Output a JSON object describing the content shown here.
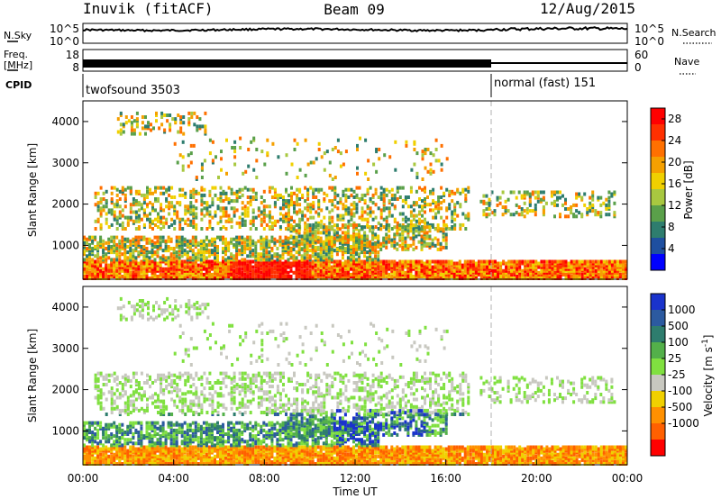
{
  "header": {
    "title_left": "Inuvik (fitACF)",
    "title_center": "Beam 09",
    "title_right": "12/Aug/2015"
  },
  "nsky": {
    "label": "N.Sky",
    "tick_top": "10^5",
    "tick_bottom": "10^0",
    "right_label": "N.Search",
    "right_tick_top": "10^5",
    "right_tick_bottom": "10^0"
  },
  "freq": {
    "label_line1": "Freq.",
    "label_line2": "[MHz]",
    "tick_top": "18",
    "tick_bottom": "8",
    "right_label": "Nave",
    "right_tick_top": "60",
    "right_tick_bottom": "0"
  },
  "cpid": {
    "label": "CPID",
    "mode1": "twofsound 3503",
    "mode2": "normal (fast) 151",
    "switch_time_hours": 18.0
  },
  "colors": {
    "power": [
      "#0000ff",
      "#1e4fa0",
      "#2e7d6e",
      "#5aa04a",
      "#a8c840",
      "#f0d000",
      "#f5a000",
      "#ff7000",
      "#ff3000",
      "#ff0000"
    ],
    "velocity": [
      "#1a33cc",
      "#2c5aa0",
      "#2e7d6e",
      "#53b04a",
      "#80e040",
      "#c8c8c0",
      "#f0d000",
      "#ff9000",
      "#ff6000",
      "#ff0000"
    ]
  },
  "chart_data": [
    {
      "type": "heatmap",
      "ylabel": "Slant Range [km]",
      "yticks": [
        1000,
        2000,
        3000,
        4000
      ],
      "ylim": [
        180,
        4500
      ],
      "xlim_hours": [
        0,
        24
      ],
      "colorbar": {
        "label": "Power [dB]",
        "ticks": [
          "4",
          "8",
          "12",
          "16",
          "20",
          "24",
          "28"
        ],
        "range": [
          0,
          30
        ]
      }
    },
    {
      "type": "heatmap",
      "ylabel": "Slant Range [km]",
      "yticks": [
        1000,
        2000,
        3000,
        4000
      ],
      "ylim": [
        180,
        4500
      ],
      "xlim_hours": [
        0,
        24
      ],
      "xticks": [
        "00:00",
        "04:00",
        "08:00",
        "12:00",
        "16:00",
        "20:00",
        "00:00"
      ],
      "xlabel": "Time UT",
      "colorbar": {
        "label": "Velocity [m s",
        "label_sup": "-1",
        "label_end": "]",
        "ticks": [
          "1000",
          "500",
          "100",
          "25",
          "-25",
          "-100",
          "-500",
          "-1000"
        ]
      }
    }
  ]
}
